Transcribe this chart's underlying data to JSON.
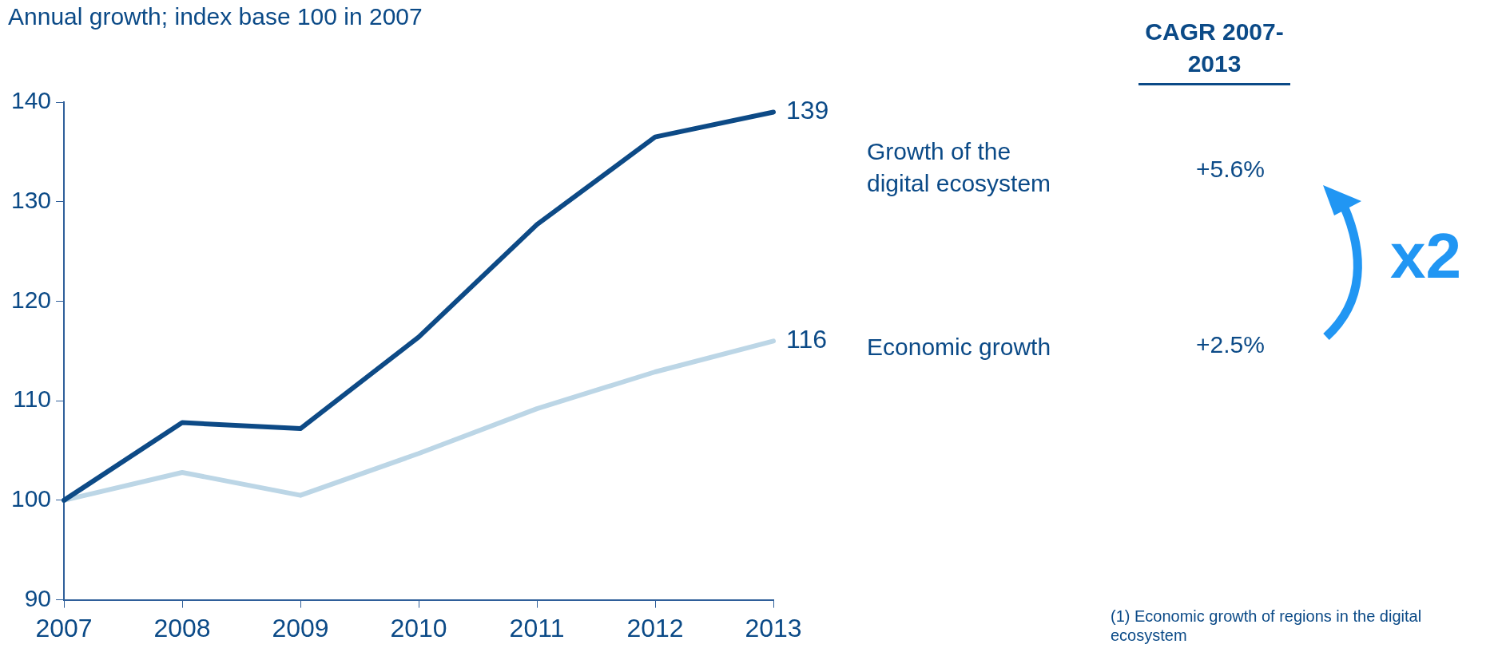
{
  "chart_data": {
    "type": "line",
    "subtitle": "Annual growth; index base 100 in 2007",
    "categories": [
      "2007",
      "2008",
      "2009",
      "2010",
      "2011",
      "2012",
      "2013"
    ],
    "series": [
      {
        "name": "Growth of the digital ecosystem",
        "color": "#0d4a86",
        "values": [
          100,
          107.8,
          107.2,
          116.4,
          127.7,
          136.5,
          139
        ],
        "value_labels": [
          null,
          null,
          null,
          null,
          null,
          null,
          "139"
        ]
      },
      {
        "name": "Economic growth",
        "color": "#bcd6e6",
        "values": [
          100,
          102.8,
          100.5,
          104.7,
          109.2,
          112.9,
          116
        ],
        "value_labels": [
          null,
          null,
          null,
          null,
          null,
          null,
          "116"
        ]
      }
    ],
    "ylim": [
      90,
      140
    ],
    "yticks": [
      90,
      100,
      110,
      120,
      130,
      140
    ],
    "grid": false,
    "legend": false,
    "marker": "none",
    "line_style": "solid",
    "annotations": [
      "CAGR 2007-2013",
      "+5.6%",
      "+2.5%",
      "x2",
      "(1) Economic growth of regions in the digital ecosystem"
    ]
  }
}
